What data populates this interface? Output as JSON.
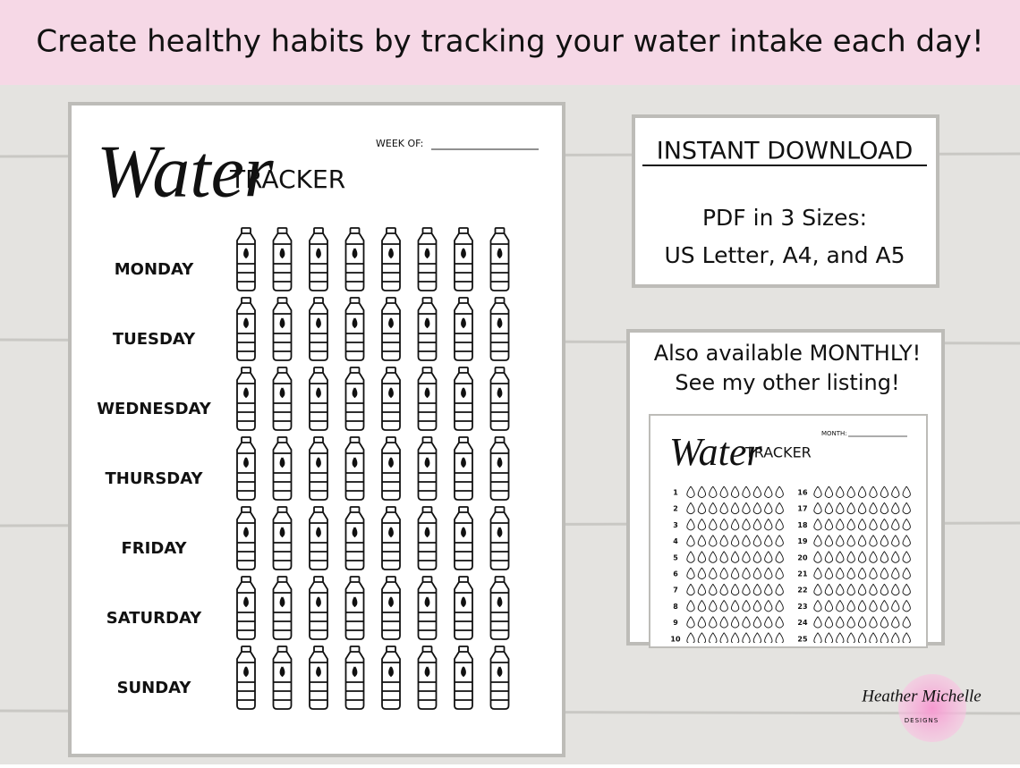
{
  "banner": {
    "text": "Create healthy habits by tracking your water intake each day!"
  },
  "tracker_sheet": {
    "script_title": "Water",
    "title": "TRACKER",
    "week_label": "WEEK OF:",
    "days": [
      "MONDAY",
      "TUESDAY",
      "WEDNESDAY",
      "THURSDAY",
      "FRIDAY",
      "SATURDAY",
      "SUNDAY"
    ]
  },
  "download_box": {
    "heading": "INSTANT DOWNLOAD",
    "line1": "PDF in 3 Sizes:",
    "line2": "US Letter, A4, and A5"
  },
  "monthly_box": {
    "line1": "Also available MONTHLY!",
    "line2": "See my other listing!",
    "preview": {
      "script_title": "Water",
      "title": "TRACKER",
      "month_label": "MONTH:",
      "left_days": [
        "1",
        "2",
        "3",
        "4",
        "5",
        "6",
        "7",
        "8",
        "9",
        "10"
      ],
      "right_days": [
        "16",
        "17",
        "18",
        "19",
        "20",
        "21",
        "22",
        "23",
        "24",
        "25"
      ]
    }
  },
  "logo": {
    "name": "Heather Michelle",
    "tagline": "DESIGNS"
  }
}
